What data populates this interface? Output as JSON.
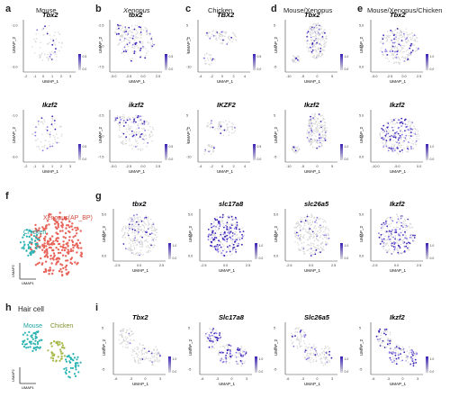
{
  "panel_letters": [
    "a",
    "b",
    "c",
    "d",
    "e",
    "f",
    "g",
    "h",
    "i"
  ],
  "column_titles": [
    "Mouse",
    "Xenopus",
    "Chicken",
    "Mouse/Xenopus",
    "Mouse/Xenopus/Chicken"
  ],
  "axis": {
    "x": "UMAP_1",
    "y": "UMAP_2"
  },
  "row1": [
    {
      "gene": "Tbx2",
      "italic": false,
      "xticks": [
        "-2",
        "-1",
        "0",
        "1",
        "2",
        "3"
      ],
      "yticks": [
        "-1.0",
        "-3.0"
      ],
      "legend": [
        "0.0",
        "0.5"
      ]
    },
    {
      "gene": "tbx2",
      "italic": true,
      "xticks": [
        "-5.0",
        "-2.5",
        "0.0",
        "2.5"
      ],
      "yticks": [
        "-2.5",
        "-5.0",
        "-7.5"
      ],
      "legend": [
        "0.0",
        "0.5"
      ]
    },
    {
      "gene": "TBX2",
      "italic": false,
      "xticks": [
        "-4",
        "-2",
        "0",
        "2",
        "4"
      ],
      "yticks": [
        "5",
        "0",
        "-5",
        "-10"
      ],
      "legend": [
        "0.0",
        "0.5"
      ]
    },
    {
      "gene": "Tbx2",
      "italic": false,
      "xticks": [
        "-10",
        "-5",
        "0",
        "5"
      ],
      "yticks": [
        "5",
        "0",
        "-5"
      ],
      "legend": [
        "0.0",
        "1.0"
      ]
    },
    {
      "gene": "Tbx2",
      "italic": false,
      "xticks": [
        "-5.0",
        "-2.5",
        "0.0",
        "2.5"
      ],
      "yticks": [
        "5.0",
        "2.5",
        "0.0"
      ],
      "legend": [
        "0.0",
        "1.0"
      ]
    }
  ],
  "row2": [
    {
      "gene": "Ikzf2",
      "italic": false,
      "xticks": [
        "-2",
        "-1",
        "0",
        "1",
        "2",
        "3"
      ],
      "yticks": [
        "-1.0",
        "-3.0"
      ],
      "legend": [
        "0.0",
        "0.5"
      ]
    },
    {
      "gene": "ikzf2",
      "italic": true,
      "xticks": [
        "-5.0",
        "-2.5",
        "0.0",
        "2.5"
      ],
      "yticks": [
        "-2.5",
        "-5.0",
        "-7.5"
      ],
      "legend": [
        "0.0",
        "0.5"
      ]
    },
    {
      "gene": "IKZF2",
      "italic": false,
      "xticks": [
        "-4",
        "-2",
        "0",
        "2",
        "4"
      ],
      "yticks": [
        "5",
        "0",
        "-5",
        "-10"
      ],
      "legend": [
        "0.0",
        "0.5"
      ]
    },
    {
      "gene": "Ikzf2",
      "italic": false,
      "xticks": [
        "-10",
        "-5",
        "0",
        "5"
      ],
      "yticks": [
        "5",
        "0",
        "-5"
      ],
      "legend": [
        "0.0",
        "1.0"
      ]
    },
    {
      "gene": "Ikzf2",
      "italic": false,
      "xticks": [
        "-10.0",
        "-5.0",
        "0.0"
      ],
      "yticks": [
        "5.0",
        "2.5",
        "0.0"
      ],
      "legend": [
        "0.0",
        "1.0"
      ]
    }
  ],
  "f": {
    "labels": [
      "Chicken",
      "Xenopus(AP_BP)"
    ],
    "axis_y": "UMAP2",
    "axis_x": "UMAP1"
  },
  "g": [
    {
      "gene": "tbx2",
      "xticks": [
        "-2.5",
        "0.0",
        "2.5"
      ],
      "yticks": [
        "5.0",
        "2.5",
        "0.0"
      ],
      "legend": [
        "0.0",
        "1.0"
      ]
    },
    {
      "gene": "slc17a8",
      "xticks": [
        "-2.5",
        "0.0",
        "2.5"
      ],
      "yticks": [
        "5.0",
        "2.5",
        "0.0"
      ],
      "legend": [
        "0.0",
        "1.0"
      ]
    },
    {
      "gene": "slc26a5",
      "xticks": [
        "-2.5",
        "0.0",
        "2.5"
      ],
      "yticks": [
        "5.0",
        "2.5",
        "0.0"
      ],
      "legend": [
        "0.0",
        "1.0"
      ]
    },
    {
      "gene": "Ikzf2",
      "xticks": [
        "-2.5",
        "0.0",
        "2.5"
      ],
      "yticks": [
        "5.0",
        "2.5",
        "0.0"
      ],
      "legend": [
        "0.0",
        "1.0"
      ]
    }
  ],
  "h": {
    "title": "Hair cell",
    "labels": [
      "Mouse",
      "Chicken"
    ],
    "axis_y": "UMAP2",
    "axis_x": "UMAP1"
  },
  "i": [
    {
      "gene": "Tbx2",
      "xticks": [
        "-6",
        "-3",
        "0",
        "3"
      ],
      "yticks": [
        "5",
        "0",
        "-5"
      ],
      "legend": [
        "0.0",
        "1.0"
      ]
    },
    {
      "gene": "Slc17a8",
      "xticks": [
        "-6",
        "-3",
        "0",
        "3"
      ],
      "yticks": [
        "5",
        "0",
        "-5"
      ],
      "legend": [
        "0.0",
        "1.0"
      ]
    },
    {
      "gene": "Slc26a5",
      "xticks": [
        "-6",
        "-3",
        "0",
        "3"
      ],
      "yticks": [
        "5",
        "0",
        "-5"
      ],
      "legend": [
        "0.0",
        "1.0"
      ]
    },
    {
      "gene": "Ikzf2",
      "xticks": [
        "-6",
        "-3",
        "0",
        "3"
      ],
      "yticks": [
        "5",
        "0",
        "-5"
      ],
      "legend": [
        "0.0",
        "1.0"
      ]
    }
  ],
  "colors": {
    "low": "#d9d9d9",
    "high": "#3a1fb5",
    "mid": "#8c7ae6",
    "red": "#e8645a",
    "teal": "#2bb3b3",
    "olive": "#a8b84a"
  }
}
